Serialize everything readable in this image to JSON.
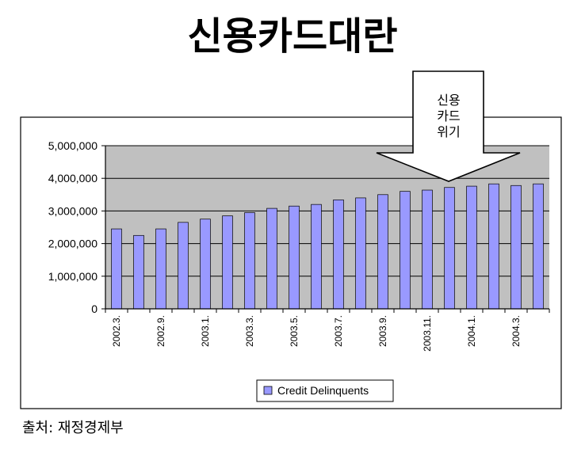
{
  "title": "신용카드대란",
  "source": "출처: 재정경제부",
  "callout": {
    "lines": [
      "신용",
      "카드",
      "위기"
    ]
  },
  "chart_data": {
    "type": "bar",
    "ylim": [
      0,
      5000000
    ],
    "yticks": [
      "5,000,000",
      "4,000,000",
      "3,000,000",
      "2,000,000",
      "1,000,000",
      "0"
    ],
    "ytick_values": [
      5000000,
      4000000,
      3000000,
      2000000,
      1000000,
      0
    ],
    "x_tick_labels": [
      "2002.3.",
      "2002.9.",
      "2003.1.",
      "2003.3.",
      "2003.5.",
      "2003.7.",
      "2003.9.",
      "2003.11.",
      "2004.1.",
      "2004.3."
    ],
    "x_tick_indices": [
      0,
      2,
      4,
      6,
      8,
      10,
      12,
      14,
      16,
      18
    ],
    "series": [
      {
        "name": "Credit Delinquents",
        "color": "#9999ff",
        "values": [
          2450000,
          2250000,
          2450000,
          2650000,
          2750000,
          2850000,
          2950000,
          3080000,
          3150000,
          3200000,
          3340000,
          3400000,
          3500000,
          3600000,
          3640000,
          3720000,
          3760000,
          3830000,
          3780000,
          3830000
        ]
      }
    ],
    "legend_position": "bottom",
    "plot_background": "#c0c0c0",
    "grid": true
  }
}
